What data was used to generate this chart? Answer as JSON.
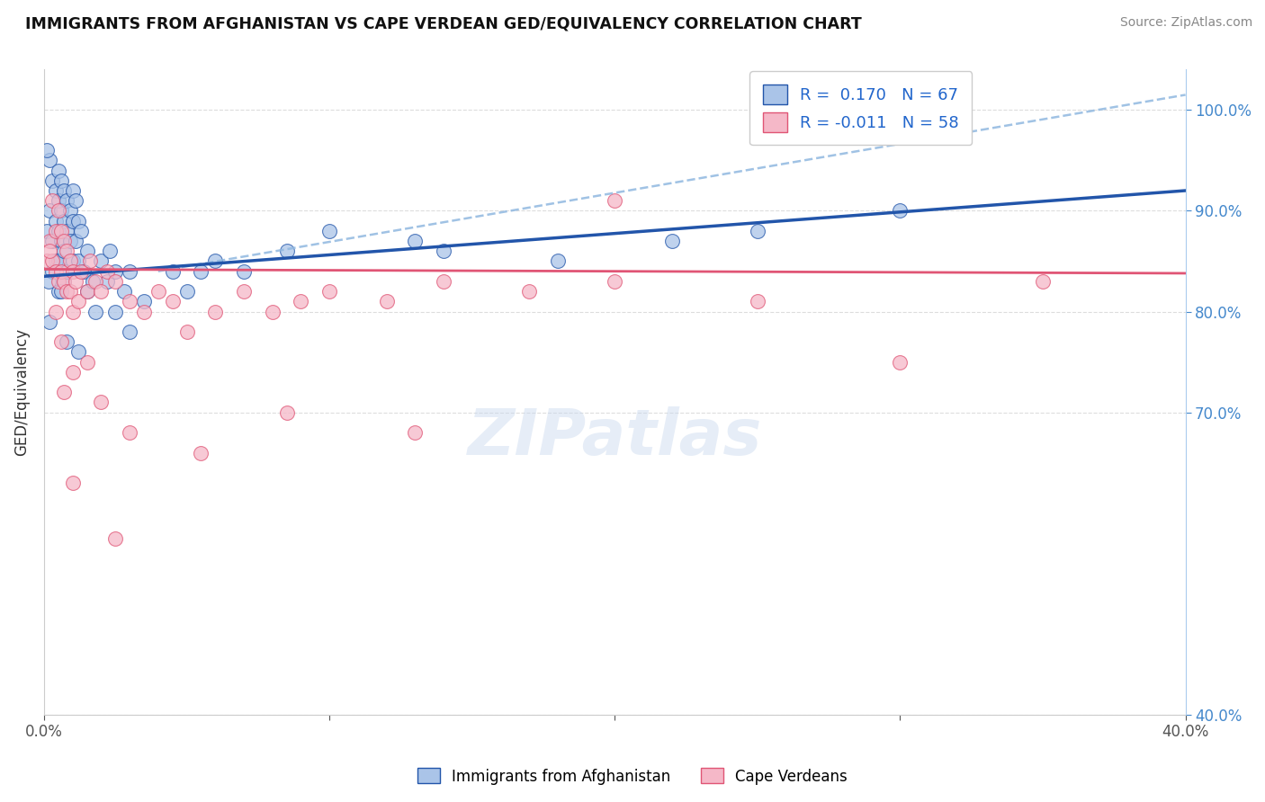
{
  "title": "IMMIGRANTS FROM AFGHANISTAN VS CAPE VERDEAN GED/EQUIVALENCY CORRELATION CHART",
  "ylabel": "GED/Equivalency",
  "source": "Source: ZipAtlas.com",
  "legend1_label": "Immigrants from Afghanistan",
  "legend2_label": "Cape Verdeans",
  "R1": 0.17,
  "N1": 67,
  "R2": -0.011,
  "N2": 58,
  "xlim": [
    0.0,
    40.0
  ],
  "ylim": [
    40.0,
    104.0
  ],
  "xtick_vals": [
    0.0,
    10.0,
    20.0,
    30.0,
    40.0
  ],
  "ytick_vals": [
    40.0,
    70.0,
    80.0,
    90.0,
    100.0
  ],
  "right_ytick_labels": [
    "40.0%",
    "70.0%",
    "80.0%",
    "90.0%",
    "100.0%"
  ],
  "color_blue": "#aac4e8",
  "color_pink": "#f5b8c8",
  "color_line_blue": "#2255aa",
  "color_line_pink": "#e05575",
  "color_dashed": "#90b8e0",
  "watermark_text": "ZIPatlas",
  "blue_line_x": [
    0.0,
    40.0
  ],
  "blue_line_y": [
    83.5,
    92.0
  ],
  "pink_line_x": [
    0.0,
    40.0
  ],
  "pink_line_y": [
    84.2,
    83.8
  ],
  "dashed_line_x": [
    4.0,
    40.0
  ],
  "dashed_line_y": [
    84.0,
    101.5
  ],
  "blue_x": [
    0.1,
    0.2,
    0.2,
    0.3,
    0.3,
    0.3,
    0.4,
    0.4,
    0.4,
    0.5,
    0.5,
    0.5,
    0.5,
    0.5,
    0.6,
    0.6,
    0.6,
    0.7,
    0.7,
    0.7,
    0.7,
    0.8,
    0.8,
    0.8,
    0.9,
    0.9,
    1.0,
    1.0,
    1.0,
    1.1,
    1.1,
    1.2,
    1.2,
    1.3,
    1.4,
    1.5,
    1.5,
    1.7,
    1.8,
    2.0,
    2.2,
    2.3,
    2.5,
    2.5,
    2.8,
    3.0,
    3.0,
    3.5,
    4.5,
    5.0,
    5.5,
    6.0,
    7.0,
    8.5,
    10.0,
    13.0,
    14.0,
    18.0,
    22.0,
    25.0,
    30.0,
    0.1,
    0.15,
    0.2,
    0.6,
    0.8,
    1.2
  ],
  "blue_y": [
    88.0,
    95.0,
    90.0,
    93.0,
    87.0,
    84.0,
    92.0,
    89.0,
    85.0,
    94.0,
    91.0,
    88.0,
    85.0,
    82.0,
    93.0,
    90.0,
    87.0,
    92.0,
    89.0,
    86.0,
    83.0,
    91.0,
    88.0,
    84.0,
    90.0,
    87.0,
    92.0,
    89.0,
    85.0,
    91.0,
    87.0,
    89.0,
    85.0,
    88.0,
    84.0,
    86.0,
    82.0,
    83.0,
    80.0,
    85.0,
    83.0,
    86.0,
    84.0,
    80.0,
    82.0,
    84.0,
    78.0,
    81.0,
    84.0,
    82.0,
    84.0,
    85.0,
    84.0,
    86.0,
    88.0,
    87.0,
    86.0,
    85.0,
    87.0,
    88.0,
    90.0,
    96.0,
    83.0,
    79.0,
    82.0,
    77.0,
    76.0
  ],
  "pink_x": [
    0.1,
    0.2,
    0.3,
    0.3,
    0.4,
    0.4,
    0.5,
    0.5,
    0.6,
    0.6,
    0.7,
    0.7,
    0.8,
    0.8,
    0.9,
    0.9,
    1.0,
    1.0,
    1.1,
    1.2,
    1.3,
    1.5,
    1.6,
    1.8,
    2.0,
    2.2,
    2.5,
    3.0,
    3.5,
    4.0,
    4.5,
    5.0,
    6.0,
    7.0,
    8.0,
    9.0,
    10.0,
    12.0,
    14.0,
    17.0,
    20.0,
    25.0,
    30.0,
    35.0,
    0.2,
    0.4,
    0.6,
    0.7,
    1.0,
    1.5,
    2.0,
    3.0,
    5.5,
    8.5,
    13.0,
    20.0,
    1.0,
    2.5
  ],
  "pink_y": [
    85.0,
    87.0,
    91.0,
    85.0,
    88.0,
    84.0,
    90.0,
    83.0,
    88.0,
    84.0,
    87.0,
    83.0,
    86.0,
    82.0,
    85.0,
    82.0,
    84.0,
    80.0,
    83.0,
    81.0,
    84.0,
    82.0,
    85.0,
    83.0,
    82.0,
    84.0,
    83.0,
    81.0,
    80.0,
    82.0,
    81.0,
    78.0,
    80.0,
    82.0,
    80.0,
    81.0,
    82.0,
    81.0,
    83.0,
    82.0,
    91.0,
    81.0,
    75.0,
    83.0,
    86.0,
    80.0,
    77.0,
    72.0,
    74.0,
    75.0,
    71.0,
    68.0,
    66.0,
    70.0,
    68.0,
    83.0,
    63.0,
    57.5
  ]
}
